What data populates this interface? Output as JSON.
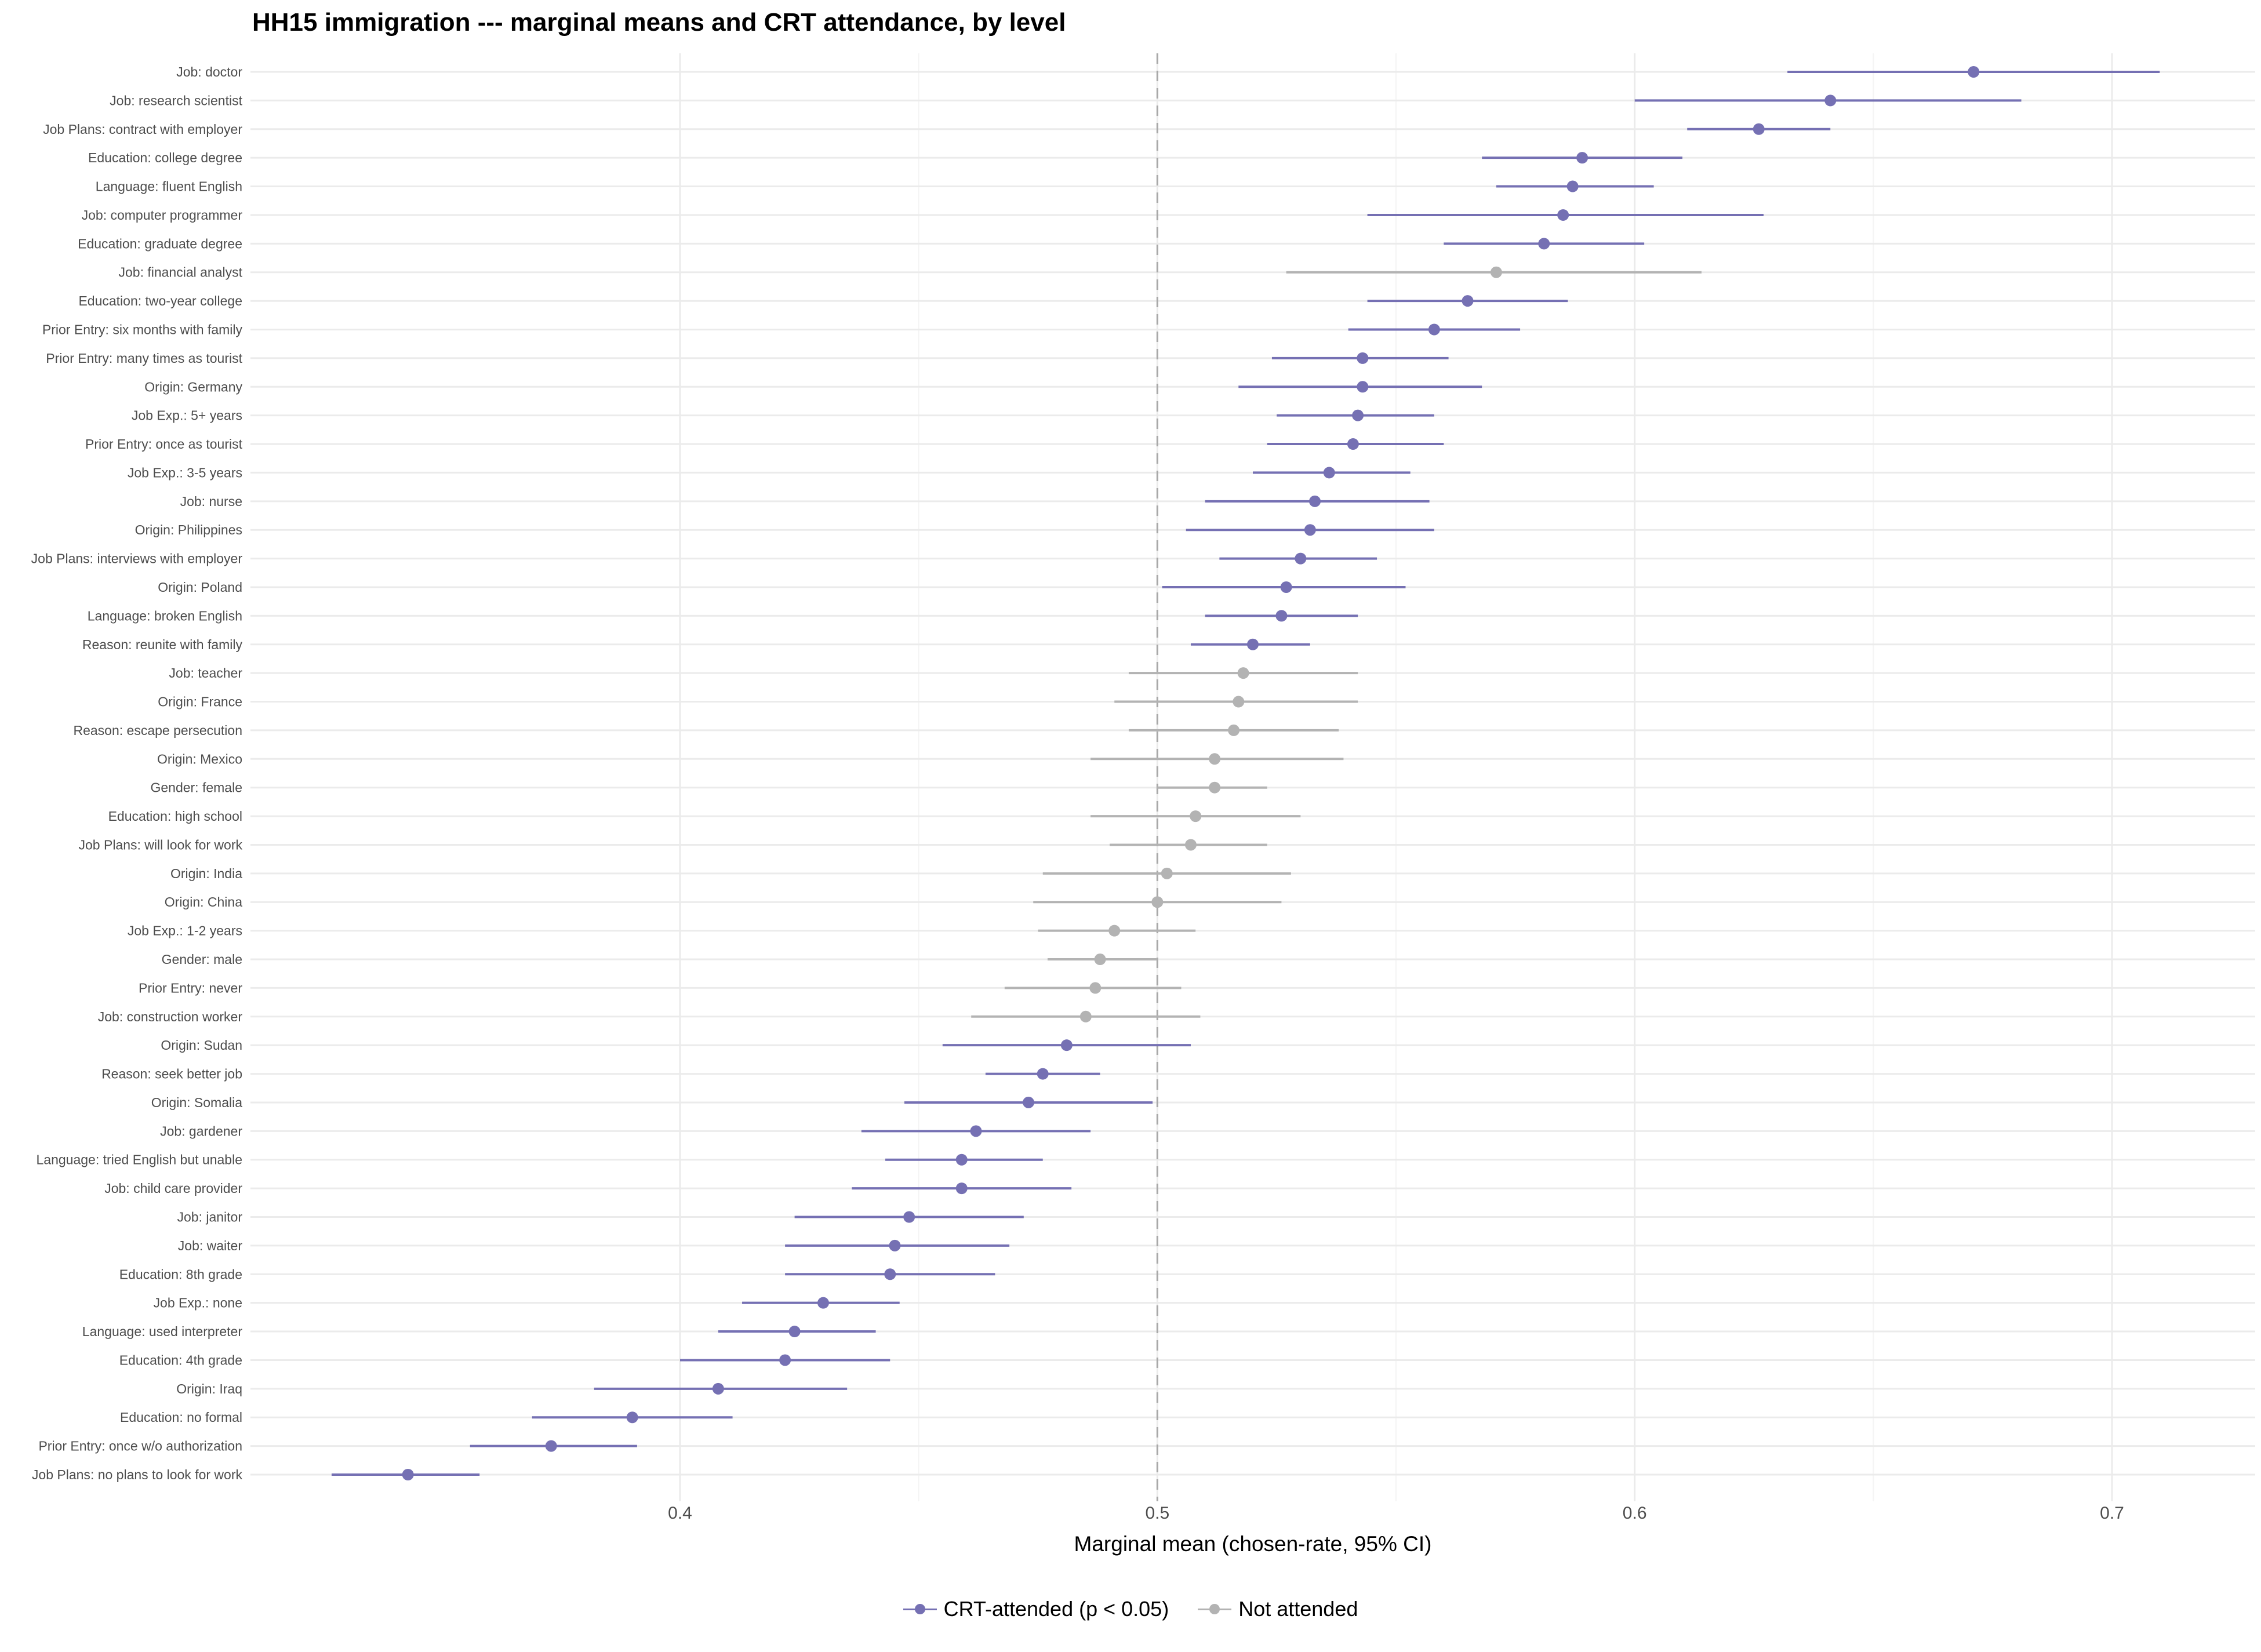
{
  "chart_data": {
    "type": "scatter",
    "title": "HH15 immigration --- marginal means and CRT attendance, by level",
    "xlabel": "Marginal mean (chosen-rate, 95% CI)",
    "ylabel": "",
    "xlim": [
      0.31,
      0.73
    ],
    "xticks": [
      0.4,
      0.5,
      0.6,
      0.7
    ],
    "xtick_labels": [
      "0.4",
      "0.5",
      "0.6",
      "0.7"
    ],
    "reference_line": 0.5,
    "grid": true,
    "legend_position": "bottom",
    "colors": {
      "attended": "#7570b3",
      "not_attended": "#b3b3b3"
    },
    "series": [
      {
        "name": "CRT-attended (p < 0.05)",
        "key": "attended"
      },
      {
        "name": "Not attended",
        "key": "not_attended"
      }
    ],
    "points": [
      {
        "label": "Job: doctor",
        "estimate": 0.671,
        "lower": 0.632,
        "upper": 0.71,
        "attended": true
      },
      {
        "label": "Job: research scientist",
        "estimate": 0.641,
        "lower": 0.6,
        "upper": 0.681,
        "attended": true
      },
      {
        "label": "Job Plans: contract with employer",
        "estimate": 0.626,
        "lower": 0.611,
        "upper": 0.641,
        "attended": true
      },
      {
        "label": "Education: college degree",
        "estimate": 0.589,
        "lower": 0.568,
        "upper": 0.61,
        "attended": true
      },
      {
        "label": "Language: fluent English",
        "estimate": 0.587,
        "lower": 0.571,
        "upper": 0.604,
        "attended": true
      },
      {
        "label": "Job: computer programmer",
        "estimate": 0.585,
        "lower": 0.544,
        "upper": 0.627,
        "attended": true
      },
      {
        "label": "Education: graduate degree",
        "estimate": 0.581,
        "lower": 0.56,
        "upper": 0.602,
        "attended": true
      },
      {
        "label": "Job: financial analyst",
        "estimate": 0.571,
        "lower": 0.527,
        "upper": 0.614,
        "attended": false
      },
      {
        "label": "Education: two-year college",
        "estimate": 0.565,
        "lower": 0.544,
        "upper": 0.586,
        "attended": true
      },
      {
        "label": "Prior Entry: six months with family",
        "estimate": 0.558,
        "lower": 0.54,
        "upper": 0.576,
        "attended": true
      },
      {
        "label": "Prior Entry: many times as tourist",
        "estimate": 0.543,
        "lower": 0.524,
        "upper": 0.561,
        "attended": true
      },
      {
        "label": "Origin: Germany",
        "estimate": 0.543,
        "lower": 0.517,
        "upper": 0.568,
        "attended": true
      },
      {
        "label": "Job Exp.: 5+ years",
        "estimate": 0.542,
        "lower": 0.525,
        "upper": 0.558,
        "attended": true
      },
      {
        "label": "Prior Entry: once as tourist",
        "estimate": 0.541,
        "lower": 0.523,
        "upper": 0.56,
        "attended": true
      },
      {
        "label": "Job Exp.: 3-5 years",
        "estimate": 0.536,
        "lower": 0.52,
        "upper": 0.553,
        "attended": true
      },
      {
        "label": "Job: nurse",
        "estimate": 0.533,
        "lower": 0.51,
        "upper": 0.557,
        "attended": true
      },
      {
        "label": "Origin: Philippines",
        "estimate": 0.532,
        "lower": 0.506,
        "upper": 0.558,
        "attended": true
      },
      {
        "label": "Job Plans: interviews with employer",
        "estimate": 0.53,
        "lower": 0.513,
        "upper": 0.546,
        "attended": true
      },
      {
        "label": "Origin: Poland",
        "estimate": 0.527,
        "lower": 0.501,
        "upper": 0.552,
        "attended": true
      },
      {
        "label": "Language: broken English",
        "estimate": 0.526,
        "lower": 0.51,
        "upper": 0.542,
        "attended": true
      },
      {
        "label": "Reason: reunite with family",
        "estimate": 0.52,
        "lower": 0.507,
        "upper": 0.532,
        "attended": true
      },
      {
        "label": "Job: teacher",
        "estimate": 0.518,
        "lower": 0.494,
        "upper": 0.542,
        "attended": false
      },
      {
        "label": "Origin: France",
        "estimate": 0.517,
        "lower": 0.491,
        "upper": 0.542,
        "attended": false
      },
      {
        "label": "Reason: escape persecution",
        "estimate": 0.516,
        "lower": 0.494,
        "upper": 0.538,
        "attended": false
      },
      {
        "label": "Origin: Mexico",
        "estimate": 0.512,
        "lower": 0.486,
        "upper": 0.539,
        "attended": false
      },
      {
        "label": "Gender: female",
        "estimate": 0.512,
        "lower": 0.5,
        "upper": 0.523,
        "attended": false
      },
      {
        "label": "Education: high school",
        "estimate": 0.508,
        "lower": 0.486,
        "upper": 0.53,
        "attended": false
      },
      {
        "label": "Job Plans: will look for work",
        "estimate": 0.507,
        "lower": 0.49,
        "upper": 0.523,
        "attended": false
      },
      {
        "label": "Origin: India",
        "estimate": 0.502,
        "lower": 0.476,
        "upper": 0.528,
        "attended": false
      },
      {
        "label": "Origin: China",
        "estimate": 0.5,
        "lower": 0.474,
        "upper": 0.526,
        "attended": false
      },
      {
        "label": "Job Exp.: 1-2 years",
        "estimate": 0.491,
        "lower": 0.475,
        "upper": 0.508,
        "attended": false
      },
      {
        "label": "Gender: male",
        "estimate": 0.488,
        "lower": 0.477,
        "upper": 0.5,
        "attended": false
      },
      {
        "label": "Prior Entry: never",
        "estimate": 0.487,
        "lower": 0.468,
        "upper": 0.505,
        "attended": false
      },
      {
        "label": "Job: construction worker",
        "estimate": 0.485,
        "lower": 0.461,
        "upper": 0.509,
        "attended": false
      },
      {
        "label": "Origin: Sudan",
        "estimate": 0.481,
        "lower": 0.455,
        "upper": 0.507,
        "attended": true
      },
      {
        "label": "Reason: seek better job",
        "estimate": 0.476,
        "lower": 0.464,
        "upper": 0.488,
        "attended": true
      },
      {
        "label": "Origin: Somalia",
        "estimate": 0.473,
        "lower": 0.447,
        "upper": 0.499,
        "attended": true
      },
      {
        "label": "Job: gardener",
        "estimate": 0.462,
        "lower": 0.438,
        "upper": 0.486,
        "attended": true
      },
      {
        "label": "Language: tried English but unable",
        "estimate": 0.459,
        "lower": 0.443,
        "upper": 0.476,
        "attended": true
      },
      {
        "label": "Job: child care provider",
        "estimate": 0.459,
        "lower": 0.436,
        "upper": 0.482,
        "attended": true
      },
      {
        "label": "Job: janitor",
        "estimate": 0.448,
        "lower": 0.424,
        "upper": 0.472,
        "attended": true
      },
      {
        "label": "Job: waiter",
        "estimate": 0.445,
        "lower": 0.422,
        "upper": 0.469,
        "attended": true
      },
      {
        "label": "Education: 8th grade",
        "estimate": 0.444,
        "lower": 0.422,
        "upper": 0.466,
        "attended": true
      },
      {
        "label": "Job Exp.: none",
        "estimate": 0.43,
        "lower": 0.413,
        "upper": 0.446,
        "attended": true
      },
      {
        "label": "Language: used interpreter",
        "estimate": 0.424,
        "lower": 0.408,
        "upper": 0.441,
        "attended": true
      },
      {
        "label": "Education: 4th grade",
        "estimate": 0.422,
        "lower": 0.4,
        "upper": 0.444,
        "attended": true
      },
      {
        "label": "Origin: Iraq",
        "estimate": 0.408,
        "lower": 0.382,
        "upper": 0.435,
        "attended": true
      },
      {
        "label": "Education: no formal",
        "estimate": 0.39,
        "lower": 0.369,
        "upper": 0.411,
        "attended": true
      },
      {
        "label": "Prior Entry: once w/o authorization",
        "estimate": 0.373,
        "lower": 0.356,
        "upper": 0.391,
        "attended": true
      },
      {
        "label": "Job Plans: no plans to look for work",
        "estimate": 0.343,
        "lower": 0.327,
        "upper": 0.358,
        "attended": true
      }
    ]
  }
}
